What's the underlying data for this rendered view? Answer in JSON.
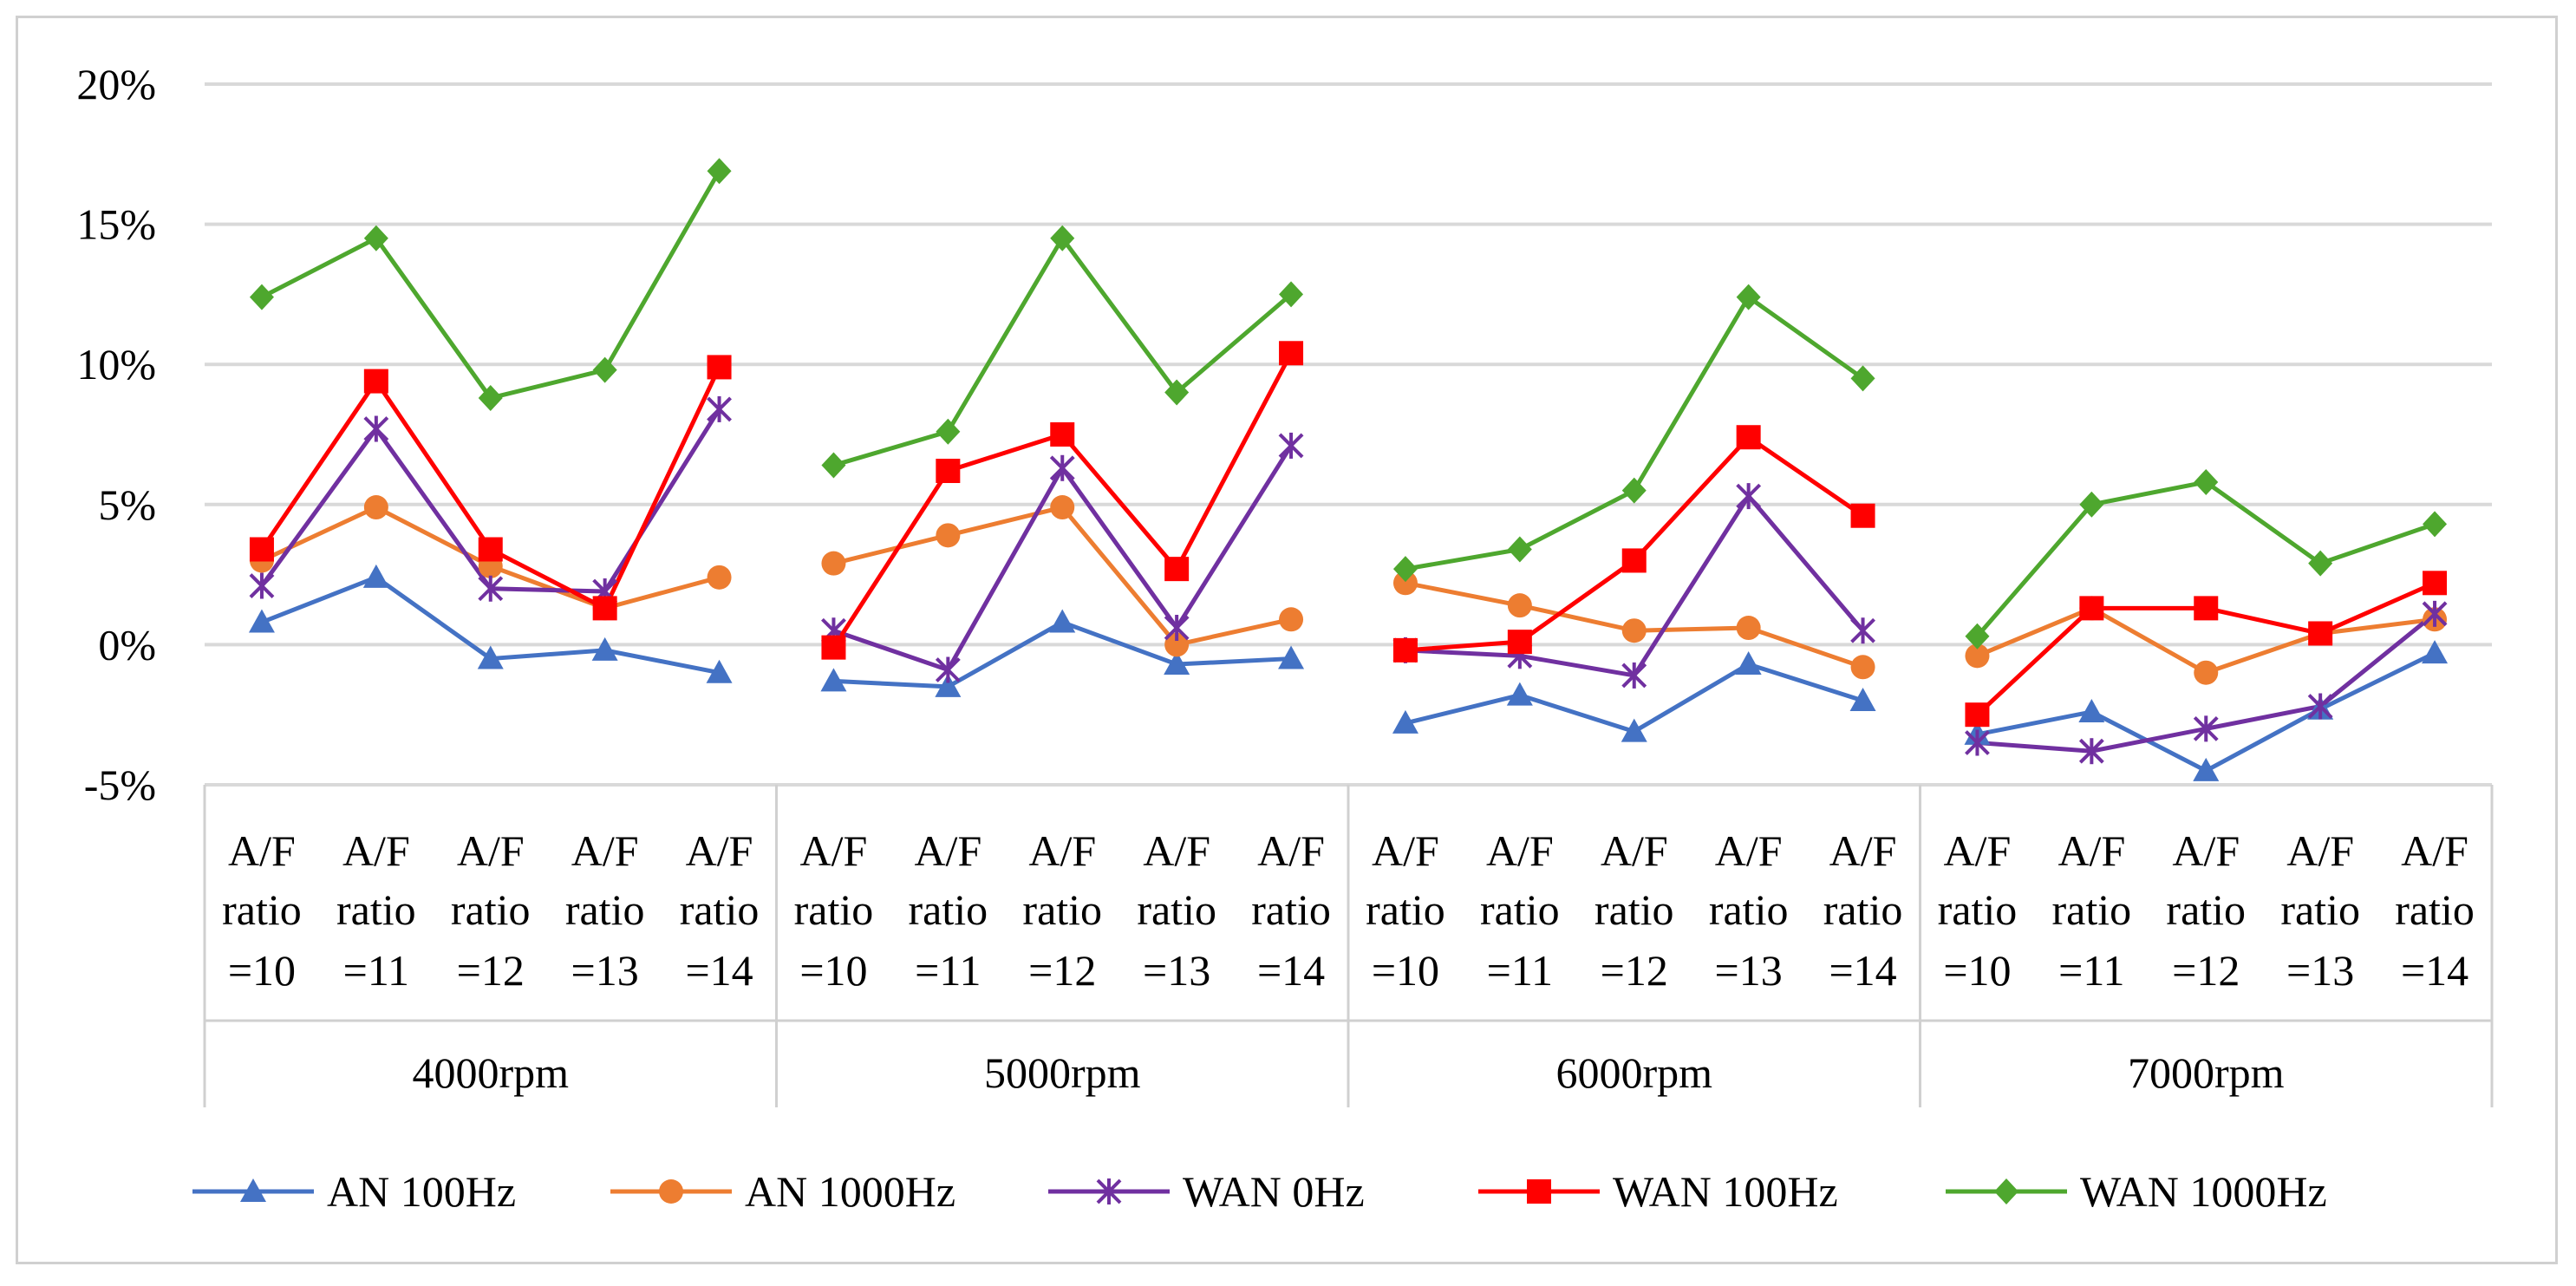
{
  "chart_data": {
    "type": "line",
    "title": "",
    "xlabel": "",
    "ylabel": "",
    "ylim": [
      -5,
      20
    ],
    "yticks": [
      -5,
      0,
      5,
      10,
      15,
      20
    ],
    "ytick_labels": [
      "-5%",
      "0%",
      "5%",
      "10%",
      "15%",
      "20%"
    ],
    "grid": true,
    "legend_position": "bottom",
    "groups": [
      "4000rpm",
      "5000rpm",
      "6000rpm",
      "7000rpm"
    ],
    "category_lines": [
      "A/F",
      "ratio"
    ],
    "subcategories": [
      "=10",
      "=11",
      "=12",
      "=13",
      "=14"
    ],
    "series": [
      {
        "name": "AN 100Hz",
        "color": "#4472C4",
        "marker": "triangle",
        "values": [
          0.8,
          2.4,
          -0.5,
          -0.2,
          -1.0,
          -1.3,
          -1.5,
          0.8,
          -0.7,
          -0.5,
          -2.8,
          -1.8,
          -3.1,
          -0.7,
          -2.0,
          -3.2,
          -2.4,
          -4.5,
          -2.3,
          -0.3
        ]
      },
      {
        "name": "AN 1000Hz",
        "color": "#ED7D31",
        "marker": "circle",
        "values": [
          3.0,
          4.9,
          2.8,
          1.3,
          2.4,
          2.9,
          3.9,
          4.9,
          0.0,
          0.9,
          2.2,
          1.4,
          0.5,
          0.6,
          -0.8,
          -0.4,
          1.3,
          -1.0,
          0.4,
          0.9
        ]
      },
      {
        "name": "WAN 0Hz",
        "color": "#7030A0",
        "marker": "star",
        "values": [
          2.1,
          7.7,
          2.0,
          1.9,
          8.4,
          0.5,
          -0.9,
          6.3,
          0.6,
          7.1,
          -0.2,
          -0.4,
          -1.1,
          5.3,
          0.5,
          -3.5,
          -3.8,
          -3.0,
          -2.2,
          1.1
        ]
      },
      {
        "name": "WAN 100Hz",
        "color": "#FF0000",
        "marker": "square",
        "values": [
          3.4,
          9.4,
          3.4,
          1.3,
          9.9,
          -0.1,
          6.2,
          7.5,
          2.7,
          10.4,
          -0.2,
          0.1,
          3.0,
          7.4,
          4.6,
          -2.5,
          1.3,
          1.3,
          0.4,
          2.2
        ]
      },
      {
        "name": "WAN 1000Hz",
        "color": "#4EA72E",
        "marker": "diamond",
        "values": [
          12.4,
          14.5,
          8.8,
          9.8,
          16.9,
          6.4,
          7.6,
          14.5,
          9.0,
          12.5,
          2.7,
          3.4,
          5.5,
          12.4,
          9.5,
          0.3,
          5.0,
          5.8,
          2.9,
          4.3
        ]
      }
    ]
  }
}
